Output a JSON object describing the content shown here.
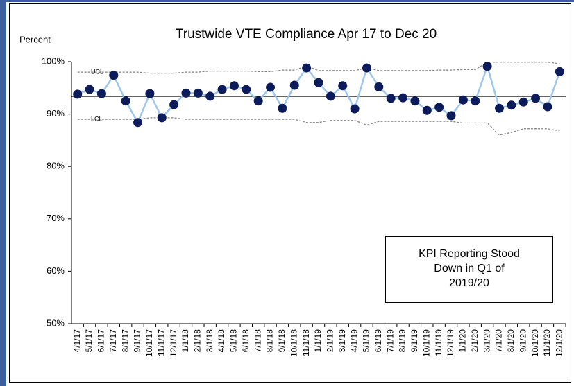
{
  "chart_data": {
    "type": "line",
    "title": "Trustwide VTE Compliance Apr 17 to Dec 20",
    "y_label": "Percent",
    "categories": [
      "4/1/17",
      "5/1/17",
      "6/1/17",
      "7/1/17",
      "8/1/17",
      "9/1/17",
      "10/1/17",
      "11/1/17",
      "12/1/17",
      "1/1/18",
      "2/1/18",
      "3/1/18",
      "4/1/18",
      "5/1/18",
      "6/1/18",
      "7/1/18",
      "8/1/18",
      "9/1/18",
      "10/1/18",
      "11/1/18",
      "1/1/19",
      "2/1/19",
      "3/1/19",
      "4/1/19",
      "5/1/19",
      "6/1/19",
      "7/1/19",
      "8/1/19",
      "9/1/19",
      "10/1/19",
      "11/1/19",
      "12/1/19",
      "1/1/20",
      "2/1/20",
      "3/1/20",
      "7/1/20",
      "8/1/20",
      "9/1/20",
      "10/1/20",
      "11/1/20",
      "12/1/20"
    ],
    "series": [
      {
        "color": "#9cc6ee",
        "marker_color": "#0c1c5a",
        "values": [
          93.8,
          94.7,
          93.9,
          97.4,
          92.5,
          88.4,
          93.9,
          89.3,
          91.8,
          94.0,
          94.0,
          93.4,
          94.7,
          95.4,
          94.7,
          92.5,
          95.1,
          91.1,
          95.5,
          98.8,
          96.0,
          93.4,
          95.4,
          91.0,
          98.8,
          95.2,
          93.0,
          93.1,
          92.5,
          90.7,
          91.3,
          89.7,
          92.7,
          92.5,
          99.1,
          91.1,
          91.7,
          92.3,
          93.0,
          91.4,
          98.1
        ]
      },
      {
        "name": "UCL",
        "color": "#808080",
        "dashed": true,
        "values": [
          98.0,
          98.0,
          98.0,
          98.0,
          98.0,
          98.0,
          97.8,
          97.8,
          97.8,
          98.0,
          98.0,
          98.2,
          98.2,
          98.2,
          98.2,
          98.1,
          98.1,
          98.4,
          98.4,
          99.2,
          98.3,
          98.3,
          98.3,
          98.3,
          98.8,
          98.3,
          98.3,
          98.3,
          98.3,
          98.3,
          98.4,
          98.4,
          98.5,
          98.5,
          99.9,
          99.9,
          99.9,
          99.9,
          99.9,
          99.9,
          99.6
        ]
      },
      {
        "name": "LCL",
        "color": "#808080",
        "dashed": true,
        "values": [
          89.0,
          89.0,
          89.0,
          89.0,
          89.0,
          89.0,
          89.3,
          89.3,
          89.3,
          89.0,
          89.0,
          89.0,
          89.0,
          89.0,
          89.0,
          89.0,
          89.0,
          89.0,
          89.0,
          88.4,
          88.4,
          88.8,
          88.8,
          88.8,
          87.9,
          88.6,
          88.6,
          88.6,
          88.6,
          88.6,
          88.6,
          88.6,
          88.3,
          88.3,
          88.3,
          86.0,
          86.5,
          87.2,
          87.2,
          87.2,
          86.8
        ]
      }
    ],
    "center_line": 93.4,
    "center_line_color": "#000000",
    "ylim": [
      50,
      100
    ],
    "yticks": [
      {
        "value": 50,
        "label": "50%"
      },
      {
        "value": 60,
        "label": "60%"
      },
      {
        "value": 70,
        "label": "70%"
      },
      {
        "value": 80,
        "label": "80%"
      },
      {
        "value": 90,
        "label": "90%"
      },
      {
        "value": 100,
        "label": "100%"
      }
    ],
    "grid": false,
    "annotation": [
      "KPI Reporting Stood",
      "Down in Q1 of",
      "2019/20"
    ]
  }
}
